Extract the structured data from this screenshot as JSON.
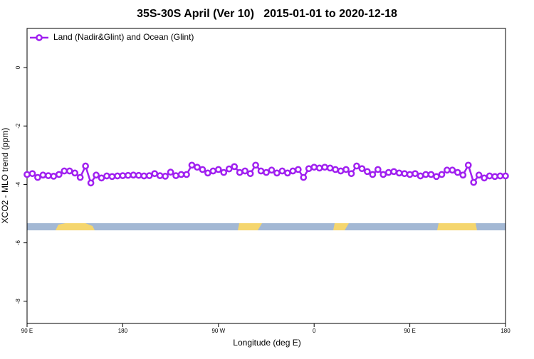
{
  "chart_data": {
    "type": "line",
    "title": "35S-30S April (Ver 10)   2015-01-01 to 2020-12-18",
    "x_label": "Longitude (deg E)",
    "y_label": "XCO2 - MLO trend (ppm)",
    "x": [
      90,
      95,
      100,
      105,
      110,
      115,
      120,
      125,
      130,
      135,
      140,
      145,
      150,
      155,
      160,
      165,
      170,
      175,
      180,
      185,
      190,
      195,
      200,
      205,
      210,
      215,
      220,
      225,
      230,
      235,
      240,
      245,
      250,
      255,
      260,
      265,
      270,
      275,
      280,
      285,
      290,
      295,
      300,
      305,
      310,
      315,
      320,
      325,
      330,
      335,
      340,
      345,
      350,
      355,
      360,
      365,
      370,
      375,
      380,
      385,
      390,
      395,
      400,
      405,
      410,
      415,
      420,
      425,
      430,
      435,
      440,
      445,
      450,
      455,
      460,
      465,
      470,
      475,
      480,
      485,
      490,
      495,
      500,
      505,
      510,
      515,
      520,
      525,
      530,
      535,
      540
    ],
    "series": [
      {
        "name": "Land (Nadir&Glint) and Ocean (Glint)",
        "color": "#a020f0",
        "values": [
          -3.66,
          -3.63,
          -3.76,
          -3.68,
          -3.7,
          -3.72,
          -3.66,
          -3.54,
          -3.54,
          -3.61,
          -3.76,
          -3.37,
          -3.95,
          -3.68,
          -3.78,
          -3.71,
          -3.73,
          -3.71,
          -3.7,
          -3.69,
          -3.68,
          -3.69,
          -3.71,
          -3.7,
          -3.63,
          -3.7,
          -3.72,
          -3.58,
          -3.7,
          -3.66,
          -3.66,
          -3.34,
          -3.41,
          -3.49,
          -3.61,
          -3.54,
          -3.49,
          -3.59,
          -3.47,
          -3.39,
          -3.59,
          -3.54,
          -3.63,
          -3.34,
          -3.54,
          -3.59,
          -3.51,
          -3.61,
          -3.54,
          -3.61,
          -3.54,
          -3.49,
          -3.76,
          -3.46,
          -3.41,
          -3.44,
          -3.41,
          -3.44,
          -3.49,
          -3.54,
          -3.49,
          -3.63,
          -3.37,
          -3.46,
          -3.56,
          -3.66,
          -3.49,
          -3.66,
          -3.59,
          -3.56,
          -3.61,
          -3.63,
          -3.66,
          -3.63,
          -3.71,
          -3.66,
          -3.66,
          -3.73,
          -3.66,
          -3.51,
          -3.51,
          -3.59,
          -3.68,
          -3.34,
          -3.93,
          -3.68,
          -3.78,
          -3.71,
          -3.73,
          -3.71,
          -3.71
        ]
      }
    ],
    "xlim": [
      90,
      540
    ],
    "xticks": [
      {
        "value": 90,
        "label": "90 E"
      },
      {
        "value": 180,
        "label": "180"
      },
      {
        "value": 270,
        "label": "90 W"
      },
      {
        "value": 360,
        "label": "0"
      },
      {
        "value": 450,
        "label": "90 E"
      },
      {
        "value": 540,
        "label": "180"
      }
    ],
    "ylim": [
      -8.76,
      1.34
    ],
    "yticks": [
      0,
      -2,
      -4,
      -6,
      -8
    ],
    "legend": "top-left"
  }
}
